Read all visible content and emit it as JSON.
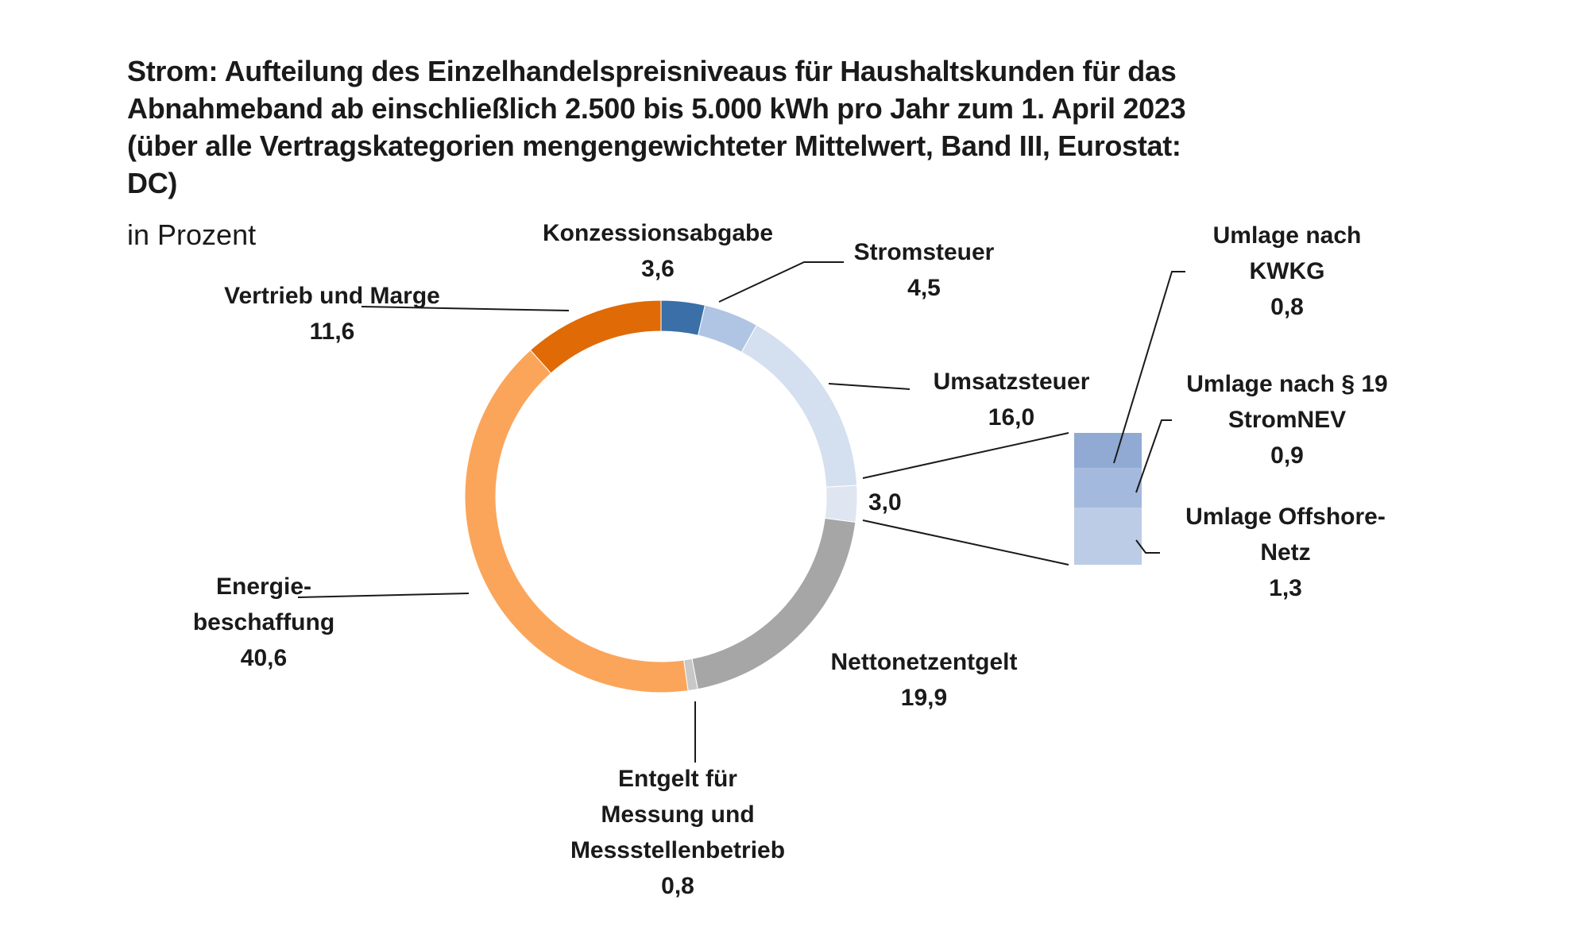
{
  "chart_data": {
    "type": "pie",
    "title_lines": [
      "Strom: Aufteilung des Einzelhandelspreisniveaus für Haushaltskunden für das",
      "Abnahmeband ab einschließlich 2.500 bis 5.000 kWh pro Jahr zum 1. April 2023",
      "(über alle Vertragskategorien mengengewichteter Mittelwert, Band III, Eurostat:",
      "DC)"
    ],
    "subtitle": "in Prozent",
    "slices": [
      {
        "lines": [
          "Konzessionsabgabe"
        ],
        "value": 3.6,
        "value_label": "3,6",
        "color": "#3a6fa8"
      },
      {
        "lines": [
          "Stromsteuer"
        ],
        "value": 4.5,
        "value_label": "4,5",
        "color": "#afc5e3"
      },
      {
        "lines": [
          "Umsatzsteuer"
        ],
        "value": 16.0,
        "value_label": "16,0",
        "color": "#d4e0ef"
      },
      {
        "lines": [],
        "value": 3.0,
        "value_label": "3,0",
        "color": "#dfe6f1"
      },
      {
        "lines": [
          "Nettonetzentgelt"
        ],
        "value": 19.9,
        "value_label": "19,9",
        "color": "#a6a6a6"
      },
      {
        "lines": [
          "Entgelt für",
          "Messung und",
          "Messstellenbetrieb"
        ],
        "value": 0.8,
        "value_label": "0,8",
        "color": "#c8c8c8"
      },
      {
        "lines": [
          "Energie-",
          "beschaffung"
        ],
        "value": 40.6,
        "value_label": "40,6",
        "color": "#fba55a"
      },
      {
        "lines": [
          "Vertrieb und Marge"
        ],
        "value": 11.6,
        "value_label": "11,6",
        "color": "#e06a06"
      }
    ],
    "breakout": [
      {
        "lines": [
          "Umlage nach",
          "KWKG"
        ],
        "value": 0.8,
        "value_label": "0,8",
        "color": "#90aad4"
      },
      {
        "lines": [
          "Umlage nach § 19",
          "StromNEV"
        ],
        "value": 0.9,
        "value_label": "0,9",
        "color": "#a4b9de"
      },
      {
        "lines": [
          "Umlage Offshore-",
          "Netz"
        ],
        "value": 1.3,
        "value_label": "1,3",
        "color": "#bccce7"
      }
    ]
  }
}
